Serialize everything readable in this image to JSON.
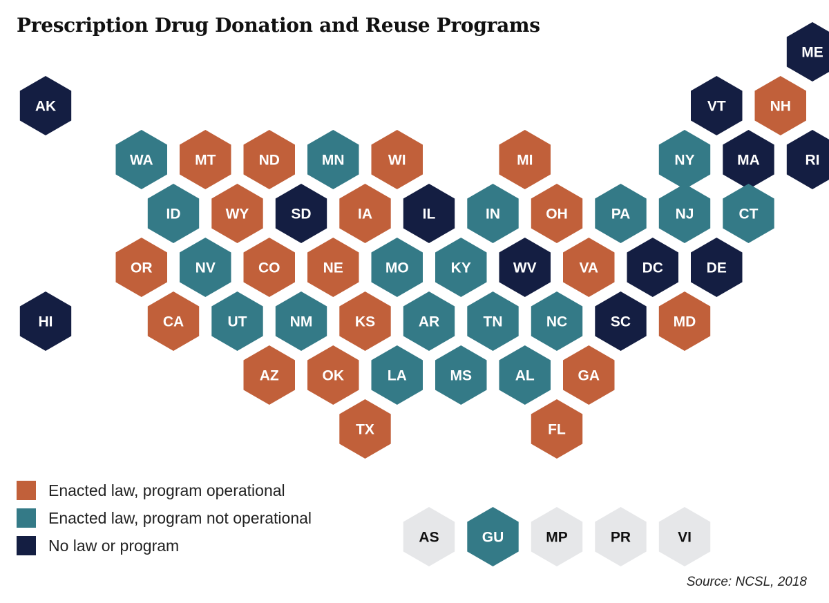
{
  "title": "Prescription Drug Donation and Reuse Programs",
  "source": "Source: NCSL, 2018",
  "colors": {
    "operational": "#C1603A",
    "not_operational": "#347A87",
    "none": "#141E42",
    "territory_gray": "#E6E7E9"
  },
  "legend": [
    {
      "key": "operational",
      "label": "Enacted law, program operational"
    },
    {
      "key": "not_operational",
      "label": "Enacted law, program not operational"
    },
    {
      "key": "none",
      "label": "No law or program"
    }
  ],
  "states": [
    {
      "abbr": "ME",
      "status": "none",
      "row": 0,
      "col": 12
    },
    {
      "abbr": "AK",
      "status": "none",
      "row": 1,
      "col": 0
    },
    {
      "abbr": "VT",
      "status": "none",
      "row": 1,
      "col": 10.5
    },
    {
      "abbr": "NH",
      "status": "operational",
      "row": 1,
      "col": 11.5
    },
    {
      "abbr": "WA",
      "status": "not_operational",
      "row": 2,
      "col": 1.5
    },
    {
      "abbr": "MT",
      "status": "operational",
      "row": 2,
      "col": 2.5
    },
    {
      "abbr": "ND",
      "status": "operational",
      "row": 2,
      "col": 3.5
    },
    {
      "abbr": "MN",
      "status": "not_operational",
      "row": 2,
      "col": 4.5
    },
    {
      "abbr": "WI",
      "status": "operational",
      "row": 2,
      "col": 5.5
    },
    {
      "abbr": "MI",
      "status": "operational",
      "row": 2,
      "col": 7.5
    },
    {
      "abbr": "NY",
      "status": "not_operational",
      "row": 2,
      "col": 10
    },
    {
      "abbr": "MA",
      "status": "none",
      "row": 2,
      "col": 11
    },
    {
      "abbr": "RI",
      "status": "none",
      "row": 2,
      "col": 12
    },
    {
      "abbr": "ID",
      "status": "not_operational",
      "row": 3,
      "col": 2
    },
    {
      "abbr": "WY",
      "status": "operational",
      "row": 3,
      "col": 3
    },
    {
      "abbr": "SD",
      "status": "none",
      "row": 3,
      "col": 4
    },
    {
      "abbr": "IA",
      "status": "operational",
      "row": 3,
      "col": 5
    },
    {
      "abbr": "IL",
      "status": "none",
      "row": 3,
      "col": 6
    },
    {
      "abbr": "IN",
      "status": "not_operational",
      "row": 3,
      "col": 7
    },
    {
      "abbr": "OH",
      "status": "operational",
      "row": 3,
      "col": 8
    },
    {
      "abbr": "PA",
      "status": "not_operational",
      "row": 3,
      "col": 9
    },
    {
      "abbr": "NJ",
      "status": "not_operational",
      "row": 3,
      "col": 10
    },
    {
      "abbr": "CT",
      "status": "not_operational",
      "row": 3,
      "col": 11
    },
    {
      "abbr": "OR",
      "status": "operational",
      "row": 4,
      "col": 1.5
    },
    {
      "abbr": "NV",
      "status": "not_operational",
      "row": 4,
      "col": 2.5
    },
    {
      "abbr": "CO",
      "status": "operational",
      "row": 4,
      "col": 3.5
    },
    {
      "abbr": "NE",
      "status": "operational",
      "row": 4,
      "col": 4.5
    },
    {
      "abbr": "MO",
      "status": "not_operational",
      "row": 4,
      "col": 5.5
    },
    {
      "abbr": "KY",
      "status": "not_operational",
      "row": 4,
      "col": 6.5
    },
    {
      "abbr": "WV",
      "status": "none",
      "row": 4,
      "col": 7.5
    },
    {
      "abbr": "VA",
      "status": "operational",
      "row": 4,
      "col": 8.5
    },
    {
      "abbr": "DC",
      "status": "none",
      "row": 4,
      "col": 9.5
    },
    {
      "abbr": "DE",
      "status": "none",
      "row": 4,
      "col": 10.5
    },
    {
      "abbr": "HI",
      "status": "none",
      "row": 5,
      "col": 0
    },
    {
      "abbr": "CA",
      "status": "operational",
      "row": 5,
      "col": 2
    },
    {
      "abbr": "UT",
      "status": "not_operational",
      "row": 5,
      "col": 3
    },
    {
      "abbr": "NM",
      "status": "not_operational",
      "row": 5,
      "col": 4
    },
    {
      "abbr": "KS",
      "status": "operational",
      "row": 5,
      "col": 5
    },
    {
      "abbr": "AR",
      "status": "not_operational",
      "row": 5,
      "col": 6
    },
    {
      "abbr": "TN",
      "status": "not_operational",
      "row": 5,
      "col": 7
    },
    {
      "abbr": "NC",
      "status": "not_operational",
      "row": 5,
      "col": 8
    },
    {
      "abbr": "SC",
      "status": "none",
      "row": 5,
      "col": 9
    },
    {
      "abbr": "MD",
      "status": "operational",
      "row": 5,
      "col": 10
    },
    {
      "abbr": "AZ",
      "status": "operational",
      "row": 6,
      "col": 3.5
    },
    {
      "abbr": "OK",
      "status": "operational",
      "row": 6,
      "col": 4.5
    },
    {
      "abbr": "LA",
      "status": "not_operational",
      "row": 6,
      "col": 5.5
    },
    {
      "abbr": "MS",
      "status": "not_operational",
      "row": 6,
      "col": 6.5
    },
    {
      "abbr": "AL",
      "status": "not_operational",
      "row": 6,
      "col": 7.5
    },
    {
      "abbr": "GA",
      "status": "operational",
      "row": 6,
      "col": 8.5
    },
    {
      "abbr": "TX",
      "status": "operational",
      "row": 7,
      "col": 5
    },
    {
      "abbr": "FL",
      "status": "operational",
      "row": 7,
      "col": 8
    }
  ],
  "territories": [
    {
      "abbr": "AS",
      "status": "territory_gray",
      "row": 9,
      "col": 6
    },
    {
      "abbr": "GU",
      "status": "not_operational",
      "row": 9,
      "col": 7
    },
    {
      "abbr": "MP",
      "status": "territory_gray",
      "row": 9,
      "col": 8
    },
    {
      "abbr": "PR",
      "status": "territory_gray",
      "row": 9,
      "col": 9
    },
    {
      "abbr": "VI",
      "status": "territory_gray",
      "row": 9,
      "col": 10
    }
  ]
}
